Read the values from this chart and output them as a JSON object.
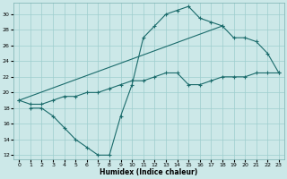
{
  "xlabel": "Humidex (Indice chaleur)",
  "background_color": "#cce8e8",
  "grid_color": "#9ecece",
  "line_color": "#1a6b6b",
  "xlim": [
    -0.5,
    23.5
  ],
  "ylim": [
    11.5,
    31.5
  ],
  "yticks": [
    12,
    14,
    16,
    18,
    20,
    22,
    24,
    26,
    28,
    30
  ],
  "xticks": [
    0,
    1,
    2,
    3,
    4,
    5,
    6,
    7,
    8,
    9,
    10,
    11,
    12,
    13,
    14,
    15,
    16,
    17,
    18,
    19,
    20,
    21,
    22,
    23
  ],
  "line1_x": [
    1,
    2,
    3,
    4,
    5,
    6,
    7,
    8,
    9,
    10,
    11,
    12,
    13,
    14,
    15,
    16,
    17,
    18
  ],
  "line1_y": [
    18,
    18,
    17,
    15.5,
    14,
    13,
    12,
    12,
    17,
    21,
    27,
    28.5,
    30,
    30.5,
    31,
    29.5,
    29,
    28.5
  ],
  "line2_x": [
    0,
    18,
    19,
    20,
    21,
    22,
    23
  ],
  "line2_y": [
    19,
    28.5,
    27,
    27,
    26.5,
    25,
    22.5
  ],
  "line3_x": [
    0,
    1,
    2,
    3,
    4,
    5,
    6,
    7,
    8,
    9,
    10,
    11,
    12,
    13,
    14,
    15,
    16,
    17,
    18,
    19,
    20,
    21,
    22,
    23
  ],
  "line3_y": [
    19,
    18.5,
    18.5,
    19,
    19.5,
    19.5,
    20,
    20,
    20.5,
    21,
    21.5,
    21.5,
    22,
    22.5,
    22.5,
    21,
    21,
    21.5,
    22,
    22,
    22,
    22.5,
    22.5,
    22.5
  ]
}
